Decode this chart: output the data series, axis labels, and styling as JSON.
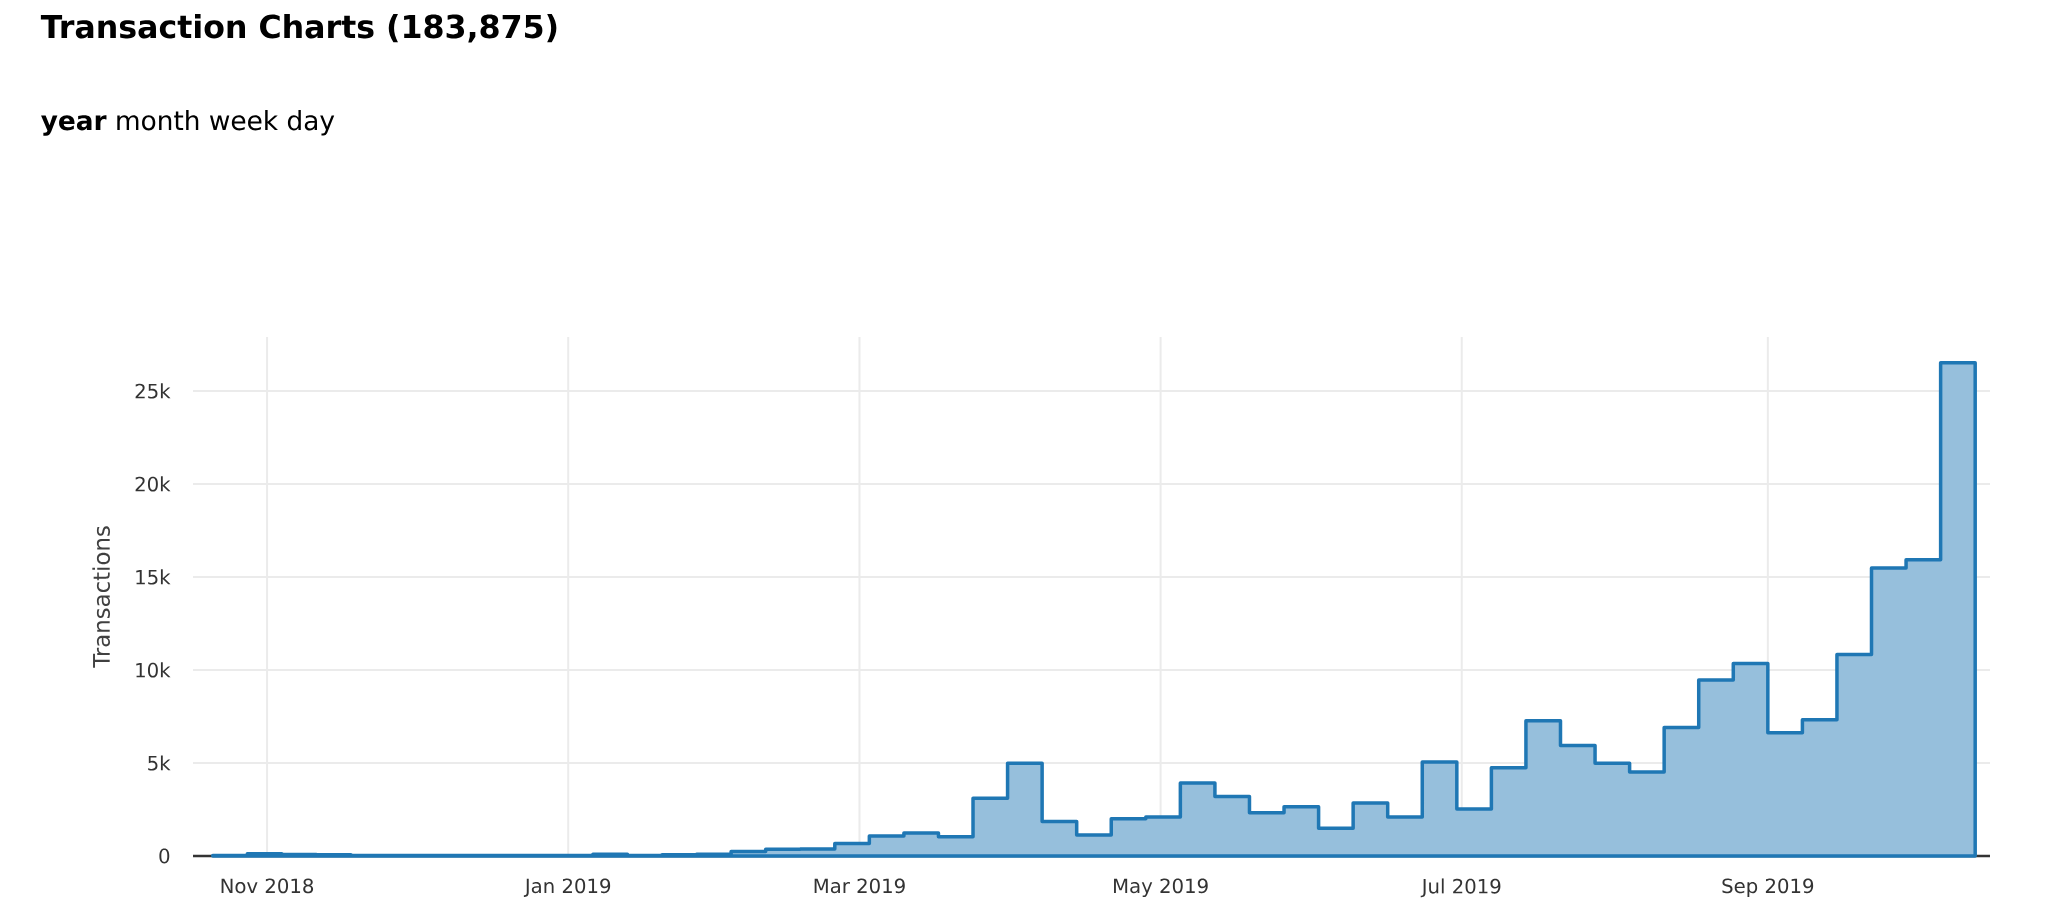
{
  "chart_data": {
    "type": "area",
    "title": "Transaction Charts (183,875)",
    "subtitle": "**year** month week day",
    "ylabel": "Transactions",
    "x": [
      "2018-10-21",
      "2018-10-28",
      "2018-11-04",
      "2018-11-11",
      "2018-11-18",
      "2018-11-25",
      "2018-12-02",
      "2018-12-09",
      "2018-12-16",
      "2018-12-23",
      "2018-12-30",
      "2019-01-06",
      "2019-01-13",
      "2019-01-20",
      "2019-01-27",
      "2019-02-03",
      "2019-02-10",
      "2019-02-17",
      "2019-02-24",
      "2019-03-03",
      "2019-03-10",
      "2019-03-17",
      "2019-03-24",
      "2019-03-31",
      "2019-04-07",
      "2019-04-14",
      "2019-04-21",
      "2019-04-28",
      "2019-05-05",
      "2019-05-12",
      "2019-05-19",
      "2019-05-26",
      "2019-06-02",
      "2019-06-09",
      "2019-06-16",
      "2019-06-23",
      "2019-06-30",
      "2019-07-07",
      "2019-07-14",
      "2019-07-21",
      "2019-07-28",
      "2019-08-04",
      "2019-08-11",
      "2019-08-18",
      "2019-08-25",
      "2019-09-01",
      "2019-09-08",
      "2019-09-15",
      "2019-09-22",
      "2019-09-29",
      "2019-10-06",
      "2019-10-13"
    ],
    "series": [
      {
        "color": "#1f77b4",
        "values": [
          30,
          120,
          80,
          60,
          30,
          20,
          20,
          20,
          20,
          20,
          20,
          100,
          30,
          60,
          100,
          240,
          360,
          380,
          670,
          1080,
          1230,
          1030,
          3100,
          4980,
          1850,
          1130,
          2000,
          2090,
          3920,
          3200,
          2330,
          2650,
          1490,
          2850,
          2090,
          5050,
          2530,
          4740,
          7270,
          5940,
          4980,
          4520,
          6910,
          9460,
          10350,
          6620,
          7320,
          10830,
          15480,
          15930,
          26520,
          0
        ]
      }
    ],
    "xlim": [
      "2018-10-17",
      "2019-10-16"
    ],
    "ylim": [
      0,
      27900
    ],
    "xticks": [
      {
        "value": "2018-11-01",
        "label": "Nov 2018"
      },
      {
        "value": "2019-01-01",
        "label": "Jan 2019"
      },
      {
        "value": "2019-03-01",
        "label": "Mar 2019"
      },
      {
        "value": "2019-05-01",
        "label": "May 2019"
      },
      {
        "value": "2019-07-01",
        "label": "Jul 2019"
      },
      {
        "value": "2019-09-01",
        "label": "Sep 2019"
      }
    ],
    "yticks": [
      0,
      {
        "value": 5000,
        "label": "5k"
      },
      {
        "value": 10000,
        "label": "10k"
      },
      {
        "value": 15000,
        "label": "15k"
      },
      {
        "value": 20000,
        "label": "20k"
      },
      {
        "value": 25000,
        "label": "25k"
      }
    ],
    "grid": true
  }
}
